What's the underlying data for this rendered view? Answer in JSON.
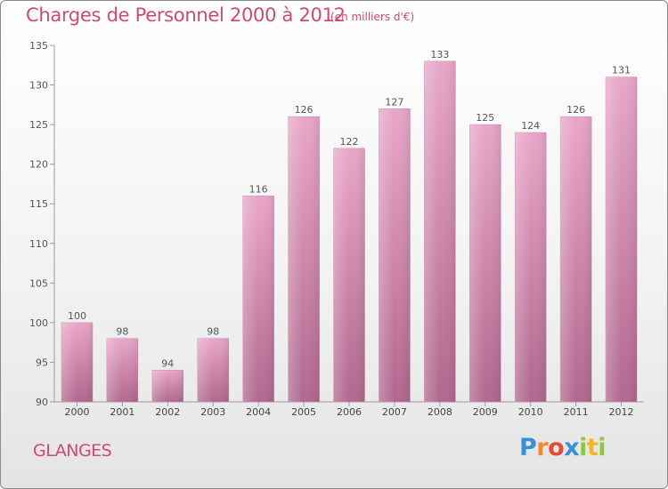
{
  "title": "Charges de Personnel 2000 à 2012",
  "unit_label": "(en milliers d'€)",
  "commune": "GLANGES",
  "logo": {
    "text": "Proxiti"
  },
  "colors": {
    "title": "#ce4a74",
    "bar_top": "#e9a6c8",
    "bar_bottom": "#b0688e",
    "axis": "#999999"
  },
  "chart_data": {
    "type": "bar",
    "title": "Charges de Personnel 2000 à 2012",
    "subtitle": "(en milliers d'€)",
    "xlabel": "",
    "ylabel": "",
    "categories": [
      "2000",
      "2001",
      "2002",
      "2003",
      "2004",
      "2005",
      "2006",
      "2007",
      "2008",
      "2009",
      "2010",
      "2011",
      "2012"
    ],
    "values": [
      100,
      98,
      94,
      98,
      116,
      126,
      122,
      127,
      133,
      125,
      124,
      126,
      131
    ],
    "ylim": [
      90,
      135
    ],
    "yticks": [
      90,
      95,
      100,
      105,
      110,
      115,
      120,
      125,
      130,
      135
    ],
    "grid": false,
    "legend": "none"
  }
}
